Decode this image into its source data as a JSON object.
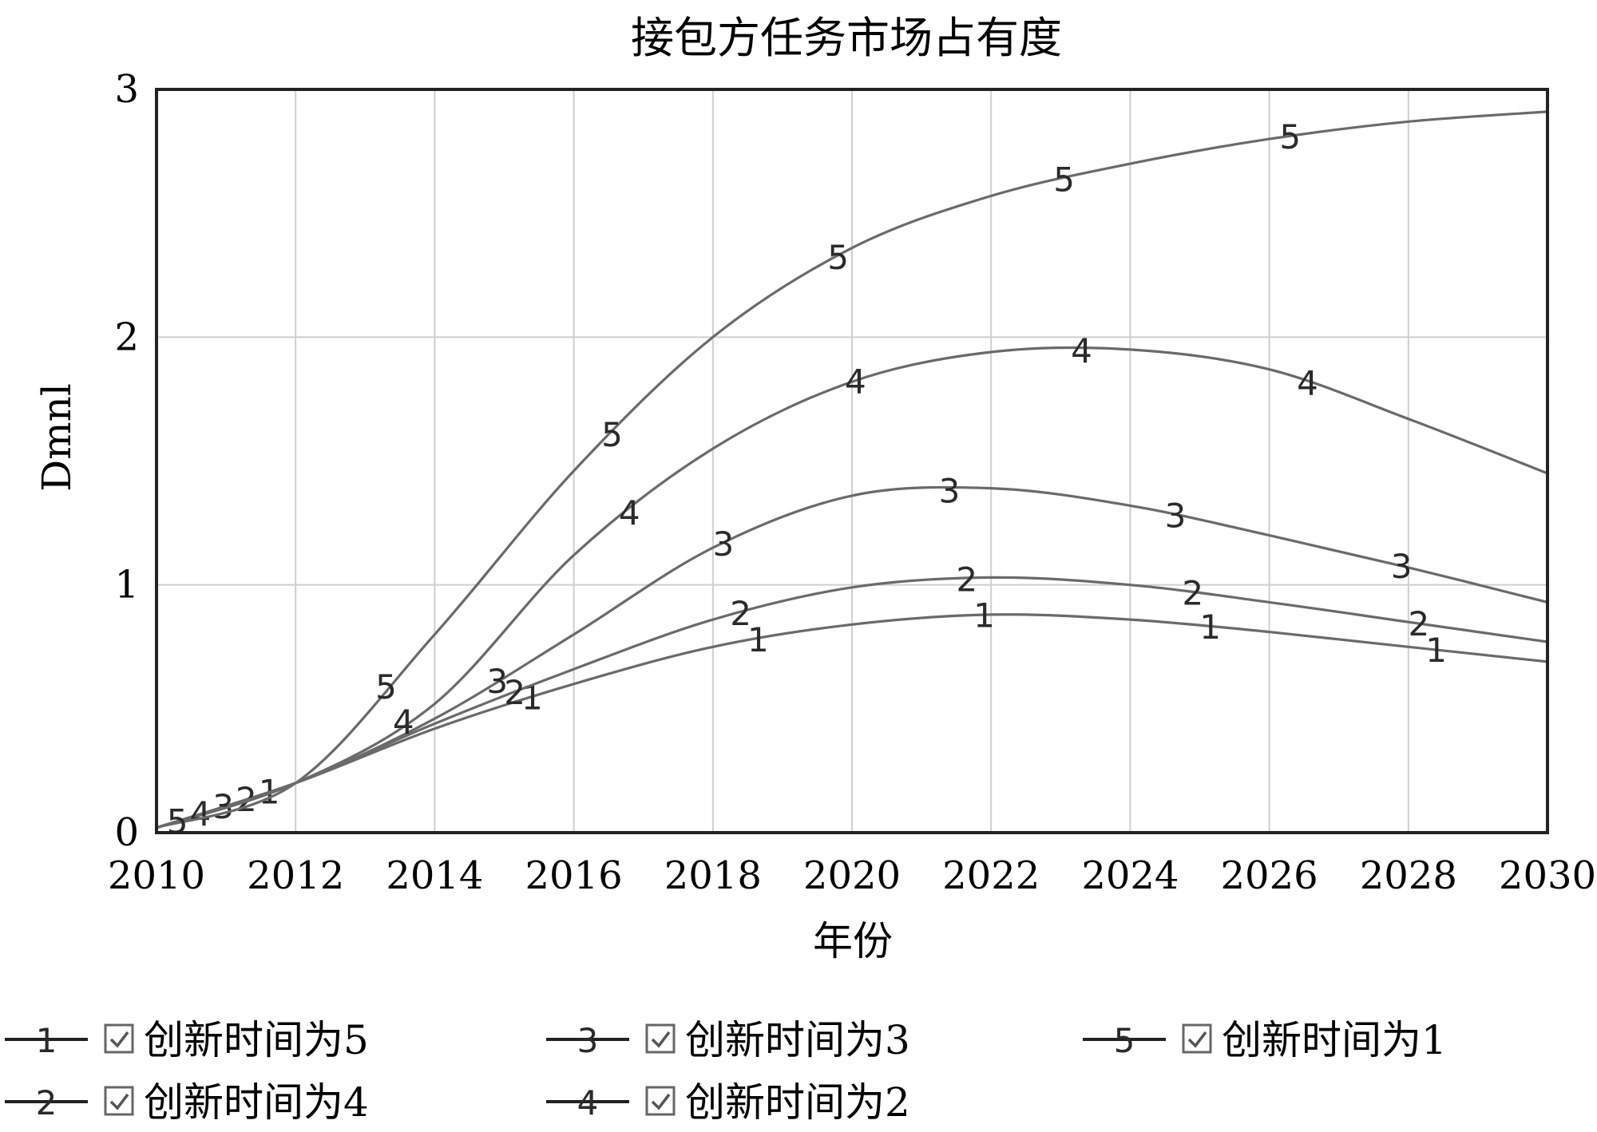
{
  "chart_data": {
    "type": "line",
    "title": "接包方任务市场占有度",
    "xlabel": "年份",
    "ylabel": "Dmnl",
    "xlim": [
      2010,
      2030
    ],
    "ylim": [
      0,
      3
    ],
    "xticks": [
      "2010",
      "2012",
      "2014",
      "2016",
      "2018",
      "2020",
      "2022",
      "2024",
      "2026",
      "2028",
      "2030"
    ],
    "yticks": [
      "0",
      "1",
      "2",
      "3"
    ],
    "grid": true,
    "legend_position": "bottom",
    "series": [
      {
        "name": "创新时间为5",
        "marker": "1",
        "x": [
          2010,
          2012,
          2014,
          2016,
          2018,
          2020,
          2022,
          2024,
          2026,
          2028,
          2030
        ],
        "y": [
          0.02,
          0.2,
          0.42,
          0.6,
          0.75,
          0.84,
          0.88,
          0.86,
          0.81,
          0.75,
          0.69
        ]
      },
      {
        "name": "创新时间为4",
        "marker": "2",
        "x": [
          2010,
          2012,
          2014,
          2016,
          2018,
          2020,
          2022,
          2024,
          2026,
          2028,
          2030
        ],
        "y": [
          0.02,
          0.2,
          0.44,
          0.66,
          0.86,
          0.99,
          1.03,
          1.0,
          0.93,
          0.85,
          0.77
        ]
      },
      {
        "name": "创新时间为3",
        "marker": "3",
        "x": [
          2010,
          2012,
          2014,
          2016,
          2018,
          2020,
          2022,
          2024,
          2026,
          2028,
          2030
        ],
        "y": [
          0.02,
          0.2,
          0.46,
          0.8,
          1.15,
          1.36,
          1.39,
          1.32,
          1.2,
          1.07,
          0.93
        ]
      },
      {
        "name": "创新时间为2",
        "marker": "4",
        "x": [
          2010,
          2012,
          2014,
          2016,
          2018,
          2020,
          2022,
          2024,
          2026,
          2028,
          2030
        ],
        "y": [
          0.02,
          0.2,
          0.52,
          1.12,
          1.55,
          1.82,
          1.94,
          1.95,
          1.87,
          1.67,
          1.45
        ]
      },
      {
        "name": "创新时间为1",
        "marker": "5",
        "x": [
          2010,
          2012,
          2014,
          2016,
          2018,
          2020,
          2022,
          2024,
          2026,
          2028,
          2030
        ],
        "y": [
          0.02,
          0.2,
          0.8,
          1.46,
          2.0,
          2.36,
          2.57,
          2.7,
          2.8,
          2.87,
          2.91
        ]
      }
    ],
    "legend_order": [
      [
        "创新时间为5",
        "创新时间为3",
        "创新时间为1"
      ],
      [
        "创新时间为4",
        "创新时间为2"
      ]
    ]
  }
}
